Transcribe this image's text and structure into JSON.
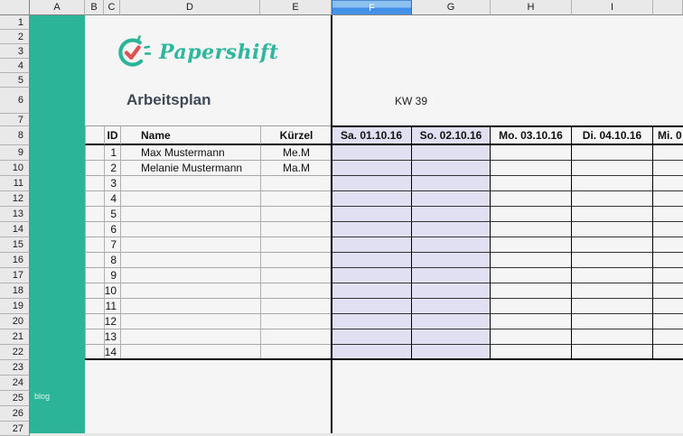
{
  "colors": {
    "brand_teal": "#2cb499",
    "logo_red": "#dd5252",
    "weekend_fill": "#e0e0f2",
    "selected_header_blue": "#3f8ee8",
    "title_text": "#3d4a56"
  },
  "grid": {
    "column_headers": [
      "A",
      "B",
      "C",
      "D",
      "E",
      "F",
      "G",
      "H",
      "I",
      ""
    ],
    "selected_column": "F",
    "row_headers": [
      "1",
      "2",
      "3",
      "4",
      "5",
      "6",
      "7",
      "8",
      "9",
      "10",
      "11",
      "12",
      "13",
      "14",
      "15",
      "16",
      "17",
      "18",
      "19",
      "20",
      "21",
      "22",
      "23",
      "24",
      "25",
      "26",
      "27"
    ]
  },
  "brand": {
    "logo_text": "Papershift",
    "blog_label": "blog"
  },
  "sheet": {
    "title": "Arbeitsplan",
    "week_label": "KW 39",
    "table": {
      "id_header": "ID",
      "name_header": "Name",
      "code_header": "Kürzel",
      "day_headers": [
        {
          "label": "Sa. 01.10.16",
          "weekend": true,
          "truncated": false
        },
        {
          "label": "So. 02.10.16",
          "weekend": true,
          "truncated": false
        },
        {
          "label": "Mo. 03.10.16",
          "weekend": false,
          "truncated": false
        },
        {
          "label": "Di. 04.10.16",
          "weekend": false,
          "truncated": false
        },
        {
          "label": "Mi. 0",
          "weekend": false,
          "truncated": true
        }
      ],
      "rows": [
        {
          "id": "1",
          "name": "Max Mustermann",
          "code": "Me.M"
        },
        {
          "id": "2",
          "name": "Melanie Mustermann",
          "code": "Ma.M"
        },
        {
          "id": "3",
          "name": "",
          "code": ""
        },
        {
          "id": "4",
          "name": "",
          "code": ""
        },
        {
          "id": "5",
          "name": "",
          "code": ""
        },
        {
          "id": "6",
          "name": "",
          "code": ""
        },
        {
          "id": "7",
          "name": "",
          "code": ""
        },
        {
          "id": "8",
          "name": "",
          "code": ""
        },
        {
          "id": "9",
          "name": "",
          "code": ""
        },
        {
          "id": "10",
          "name": "",
          "code": ""
        },
        {
          "id": "11",
          "name": "",
          "code": ""
        },
        {
          "id": "12",
          "name": "",
          "code": ""
        },
        {
          "id": "13",
          "name": "",
          "code": ""
        },
        {
          "id": "14",
          "name": "",
          "code": ""
        }
      ]
    }
  }
}
